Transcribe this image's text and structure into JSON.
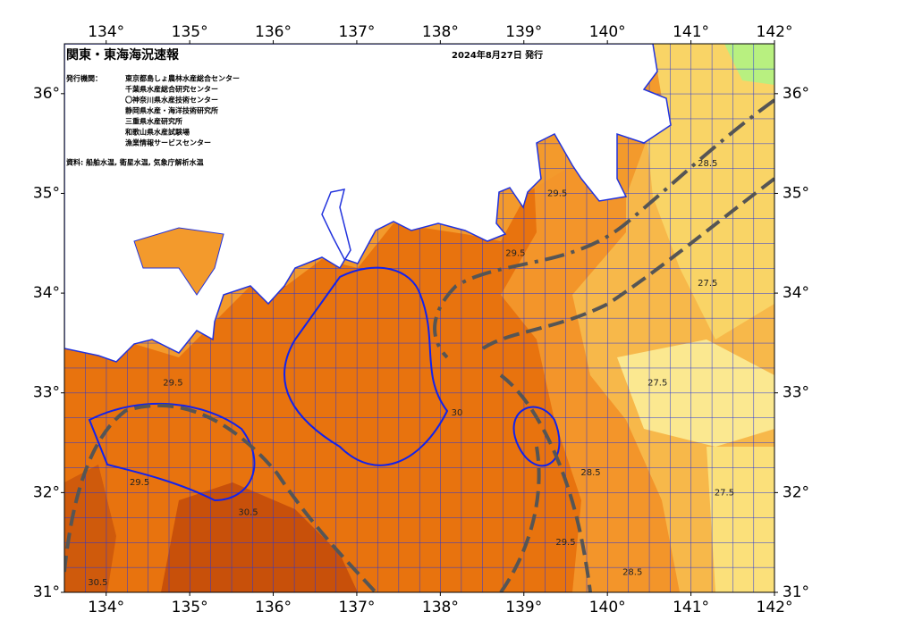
{
  "header": {
    "title": "関東・東海海況速報",
    "date": "2024年8月27日 発行",
    "issuer_label": "発行機関：",
    "issuers": [
      "東京都島しょ農林水産総合センター",
      "千葉県水産総合研究センター",
      "〇神奈川県水産技術センター",
      "静岡県水産・海洋技術研究所",
      "三重県水産研究所",
      "和歌山県水産試験場",
      "漁業情報サービスセンター"
    ],
    "source": "資料: 船舶水温, 衛星水温, 気象庁解析水温"
  },
  "map": {
    "lonlim": [
      133.5,
      142
    ],
    "latlim": [
      31,
      36.5
    ],
    "lon_ticks": [
      {
        "value": 134,
        "label": "134°"
      },
      {
        "value": 135,
        "label": "135°"
      },
      {
        "value": 136,
        "label": "136°"
      },
      {
        "value": 137,
        "label": "137°"
      },
      {
        "value": 138,
        "label": "138°"
      },
      {
        "value": 139,
        "label": "139°"
      },
      {
        "value": 140,
        "label": "140°"
      },
      {
        "value": 141,
        "label": "141°"
      },
      {
        "value": 142,
        "label": "142°"
      }
    ],
    "lat_ticks": [
      {
        "value": 31,
        "label": "31°"
      },
      {
        "value": 32,
        "label": "32°"
      },
      {
        "value": 33,
        "label": "33°"
      },
      {
        "value": 34,
        "label": "34°"
      },
      {
        "value": 35,
        "label": "35°"
      },
      {
        "value": 36,
        "label": "36°"
      }
    ],
    "contour_labels": [
      {
        "text": "29.5",
        "lon": 138.9,
        "lat": 34.4
      },
      {
        "text": "29.5",
        "lon": 134.8,
        "lat": 33.1
      },
      {
        "text": "29.5",
        "lon": 134.4,
        "lat": 32.1
      },
      {
        "text": "30.5",
        "lon": 135.7,
        "lat": 31.8
      },
      {
        "text": "30.5",
        "lon": 133.9,
        "lat": 31.1
      },
      {
        "text": "29.5",
        "lon": 139.5,
        "lat": 31.5
      },
      {
        "text": "28.5",
        "lon": 139.8,
        "lat": 32.2
      },
      {
        "text": "27.5",
        "lon": 140.6,
        "lat": 33.1
      },
      {
        "text": "27.5",
        "lon": 141.4,
        "lat": 32.0
      },
      {
        "text": "28.5",
        "lon": 140.3,
        "lat": 31.2
      },
      {
        "text": "28.5",
        "lon": 141.2,
        "lat": 35.3
      },
      {
        "text": "27.5",
        "lon": 141.2,
        "lat": 34.1
      },
      {
        "text": "29.5",
        "lon": 139.4,
        "lat": 35.0
      },
      {
        "text": "30",
        "lon": 138.2,
        "lat": 32.8
      }
    ]
  }
}
